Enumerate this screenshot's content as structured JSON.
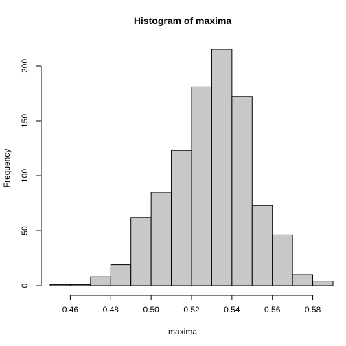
{
  "chart_data": {
    "type": "bar",
    "title": "Histogram of maxima",
    "xlabel": "maxima",
    "ylabel": "Frequency",
    "bins": [
      {
        "from": 0.45,
        "to": 0.46,
        "count": 1
      },
      {
        "from": 0.46,
        "to": 0.47,
        "count": 1
      },
      {
        "from": 0.47,
        "to": 0.48,
        "count": 8
      },
      {
        "from": 0.48,
        "to": 0.49,
        "count": 19
      },
      {
        "from": 0.49,
        "to": 0.5,
        "count": 62
      },
      {
        "from": 0.5,
        "to": 0.51,
        "count": 85
      },
      {
        "from": 0.51,
        "to": 0.52,
        "count": 123
      },
      {
        "from": 0.52,
        "to": 0.53,
        "count": 181
      },
      {
        "from": 0.53,
        "to": 0.54,
        "count": 215
      },
      {
        "from": 0.54,
        "to": 0.55,
        "count": 172
      },
      {
        "from": 0.55,
        "to": 0.56,
        "count": 73
      },
      {
        "from": 0.56,
        "to": 0.57,
        "count": 46
      },
      {
        "from": 0.57,
        "to": 0.58,
        "count": 10
      },
      {
        "from": 0.58,
        "to": 0.59,
        "count": 4
      }
    ],
    "xlim": [
      0.45,
      0.59
    ],
    "ylim": [
      0,
      215
    ],
    "x_ticks": [
      "0.46",
      "0.48",
      "0.50",
      "0.52",
      "0.54",
      "0.56",
      "0.58"
    ],
    "y_ticks": [
      "0",
      "50",
      "100",
      "150",
      "200"
    ],
    "bar_fill": "#c8c8c8",
    "bar_stroke": "#000000",
    "grid": false
  }
}
